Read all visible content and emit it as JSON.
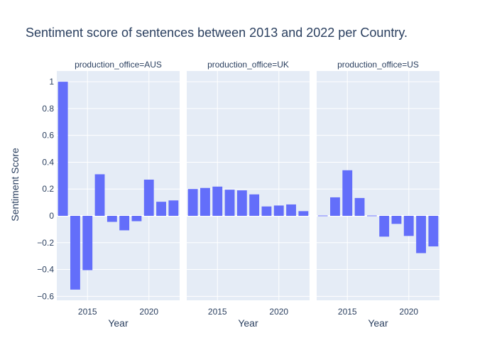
{
  "chart_data": {
    "type": "bar",
    "title": "Sentiment score of sentences between 2013 and 2022 per Country.",
    "ylabel": "Sentiment Score",
    "xlabel": "Year",
    "ylim": [
      -0.63,
      1.08
    ],
    "xlim": [
      2012.5,
      2022.5
    ],
    "yticks": [
      1,
      0.8,
      0.6,
      0.4,
      0.2,
      0,
      -0.2,
      -0.4,
      -0.6
    ],
    "ytick_labels": [
      "1",
      "0.8",
      "0.6",
      "0.4",
      "0.2",
      "0",
      "−0.2",
      "−0.4",
      "−0.6"
    ],
    "xticks": [
      2015,
      2020
    ],
    "xtick_labels": [
      "2015",
      "2020"
    ],
    "colors": {
      "bar": "#636efa",
      "plot_bg": "#e5ecf6",
      "grid": "#ffffff",
      "text": "#2a3f5f"
    },
    "facets": [
      {
        "label": "production_office=AUS",
        "x": [
          2013,
          2014,
          2015,
          2016,
          2017,
          2018,
          2019,
          2020,
          2021,
          2022
        ],
        "values": [
          1.0,
          -0.55,
          -0.405,
          0.31,
          -0.045,
          -0.108,
          -0.04,
          0.27,
          0.105,
          0.115
        ]
      },
      {
        "label": "production_office=UK",
        "x": [
          2013,
          2014,
          2015,
          2016,
          2017,
          2018,
          2019,
          2020,
          2021,
          2022
        ],
        "values": [
          0.2,
          0.208,
          0.218,
          0.195,
          0.19,
          0.16,
          0.07,
          0.077,
          0.085,
          0.035
        ]
      },
      {
        "label": "production_office=US",
        "x": [
          2013,
          2014,
          2015,
          2016,
          2017,
          2018,
          2019,
          2020,
          2021,
          2022
        ],
        "values": [
          0.0,
          0.138,
          0.34,
          0.133,
          0.005,
          -0.155,
          -0.06,
          -0.15,
          -0.278,
          -0.228
        ]
      }
    ]
  }
}
